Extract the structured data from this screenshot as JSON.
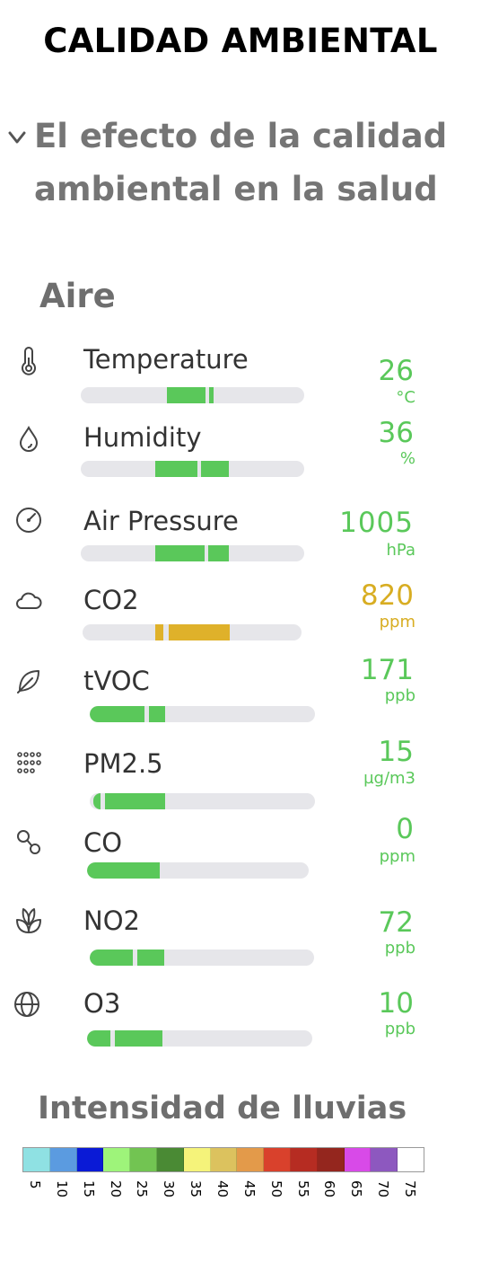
{
  "header": {
    "title": "CALIDAD AMBIENTAL"
  },
  "intro": {
    "chevron_icon": "chevron-down-icon",
    "subtitle": "El efecto de la calidad ambiental en la salud"
  },
  "air": {
    "section_title": "Aire",
    "colors": {
      "good": "#5ac85a",
      "moderate": "#dfb12a",
      "track": "#e6e6ea"
    },
    "rows": [
      {
        "label": "Temperature",
        "value": "26",
        "unit": "°C",
        "icon": "thermometer-icon",
        "status": "good"
      },
      {
        "label": "Humidity",
        "value": "36",
        "unit": "%",
        "icon": "droplet-icon",
        "status": "good"
      },
      {
        "label": "Air Pressure",
        "value": "1005",
        "unit": "hPa",
        "icon": "gauge-icon",
        "status": "good"
      },
      {
        "label": "CO2",
        "value": "820",
        "unit": "ppm",
        "icon": "cloud-icon",
        "status": "moderate"
      },
      {
        "label": "tVOC",
        "value": "171",
        "unit": "ppb",
        "icon": "leaf-icon",
        "status": "good"
      },
      {
        "label": "PM2.5",
        "value": "15",
        "unit": "µg/m3",
        "icon": "particles-icon",
        "status": "good"
      },
      {
        "label": "CO",
        "value": "0",
        "unit": "ppm",
        "icon": "molecule-icon",
        "status": "good"
      },
      {
        "label": "NO2",
        "value": "72",
        "unit": "ppb",
        "icon": "plant-icon",
        "status": "good"
      },
      {
        "label": "O3",
        "value": "10",
        "unit": "ppb",
        "icon": "globe-icon",
        "status": "good"
      }
    ]
  },
  "rain": {
    "section_title": "Intensidad de lluvias",
    "scale": [
      {
        "label": "5",
        "color": "#8fe1e3"
      },
      {
        "label": "10",
        "color": "#5b9be0"
      },
      {
        "label": "15",
        "color": "#0a1ad6"
      },
      {
        "label": "20",
        "color": "#9ef47a"
      },
      {
        "label": "25",
        "color": "#72c452"
      },
      {
        "label": "30",
        "color": "#4a8a34"
      },
      {
        "label": "35",
        "color": "#f5f37a"
      },
      {
        "label": "40",
        "color": "#dcc25e"
      },
      {
        "label": "45",
        "color": "#e39a4a"
      },
      {
        "label": "50",
        "color": "#d9412c"
      },
      {
        "label": "55",
        "color": "#b62c22"
      },
      {
        "label": "60",
        "color": "#94261e"
      },
      {
        "label": "65",
        "color": "#d84ae8"
      },
      {
        "label": "70",
        "color": "#8d58bf"
      },
      {
        "label": "75",
        "color": "#ffffff"
      }
    ]
  }
}
